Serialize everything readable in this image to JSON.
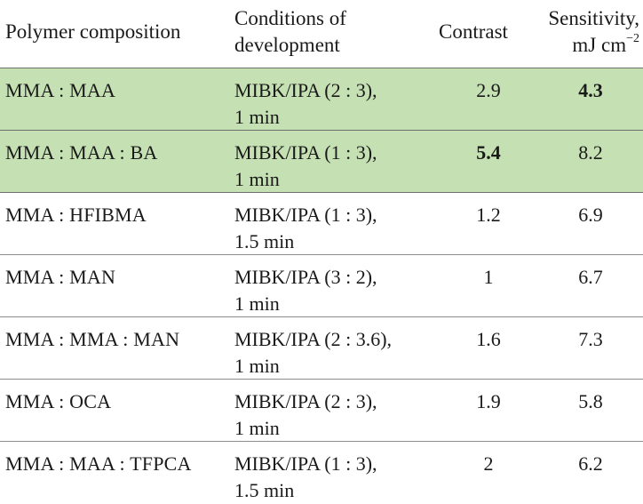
{
  "header": {
    "col1": "Polymer composition",
    "col2_line1": "Conditions of",
    "col2_line2": "development",
    "col3": "Contrast",
    "col4_line1": "Sensitivity,",
    "col4_line2": "mJ cm",
    "col4_sup": "−2"
  },
  "rows": [
    {
      "composition": "MMA : MAA",
      "cond1": "MIBK/IPA (2 : 3),",
      "cond2": "1 min",
      "contrast": "2.9",
      "sensitivity": "4.3",
      "highlighted": true,
      "bold": "sensitivity"
    },
    {
      "composition": "MMA : MAA : BA",
      "cond1": "MIBK/IPA (1 : 3),",
      "cond2": "1 min",
      "contrast": "5.4",
      "sensitivity": "8.2",
      "highlighted": true,
      "bold": "contrast"
    },
    {
      "composition": "MMA : HFIBMA",
      "cond1": "MIBK/IPA (1 : 3),",
      "cond2": "1.5 min",
      "contrast": "1.2",
      "sensitivity": "6.9"
    },
    {
      "composition": "MMA : MAN",
      "cond1": "MIBK/IPA (3 : 2),",
      "cond2": "1 min",
      "contrast": "1",
      "sensitivity": "6.7"
    },
    {
      "composition": "MMA : MMA : MAN",
      "cond1": "MIBK/IPA (2 : 3.6),",
      "cond2": "1 min",
      "contrast": "1.6",
      "sensitivity": "7.3"
    },
    {
      "composition": "MMA : OCA",
      "cond1": "MIBK/IPA (2 : 3),",
      "cond2": "1 min",
      "contrast": "1.9",
      "sensitivity": "5.8"
    },
    {
      "composition": "MMA : MAA : TFPCA",
      "cond1": "MIBK/IPA (1 : 3),",
      "cond2": "1.5 min",
      "contrast": "2",
      "sensitivity": "6.2"
    }
  ],
  "colors": {
    "highlight": "#c5e0b3"
  }
}
